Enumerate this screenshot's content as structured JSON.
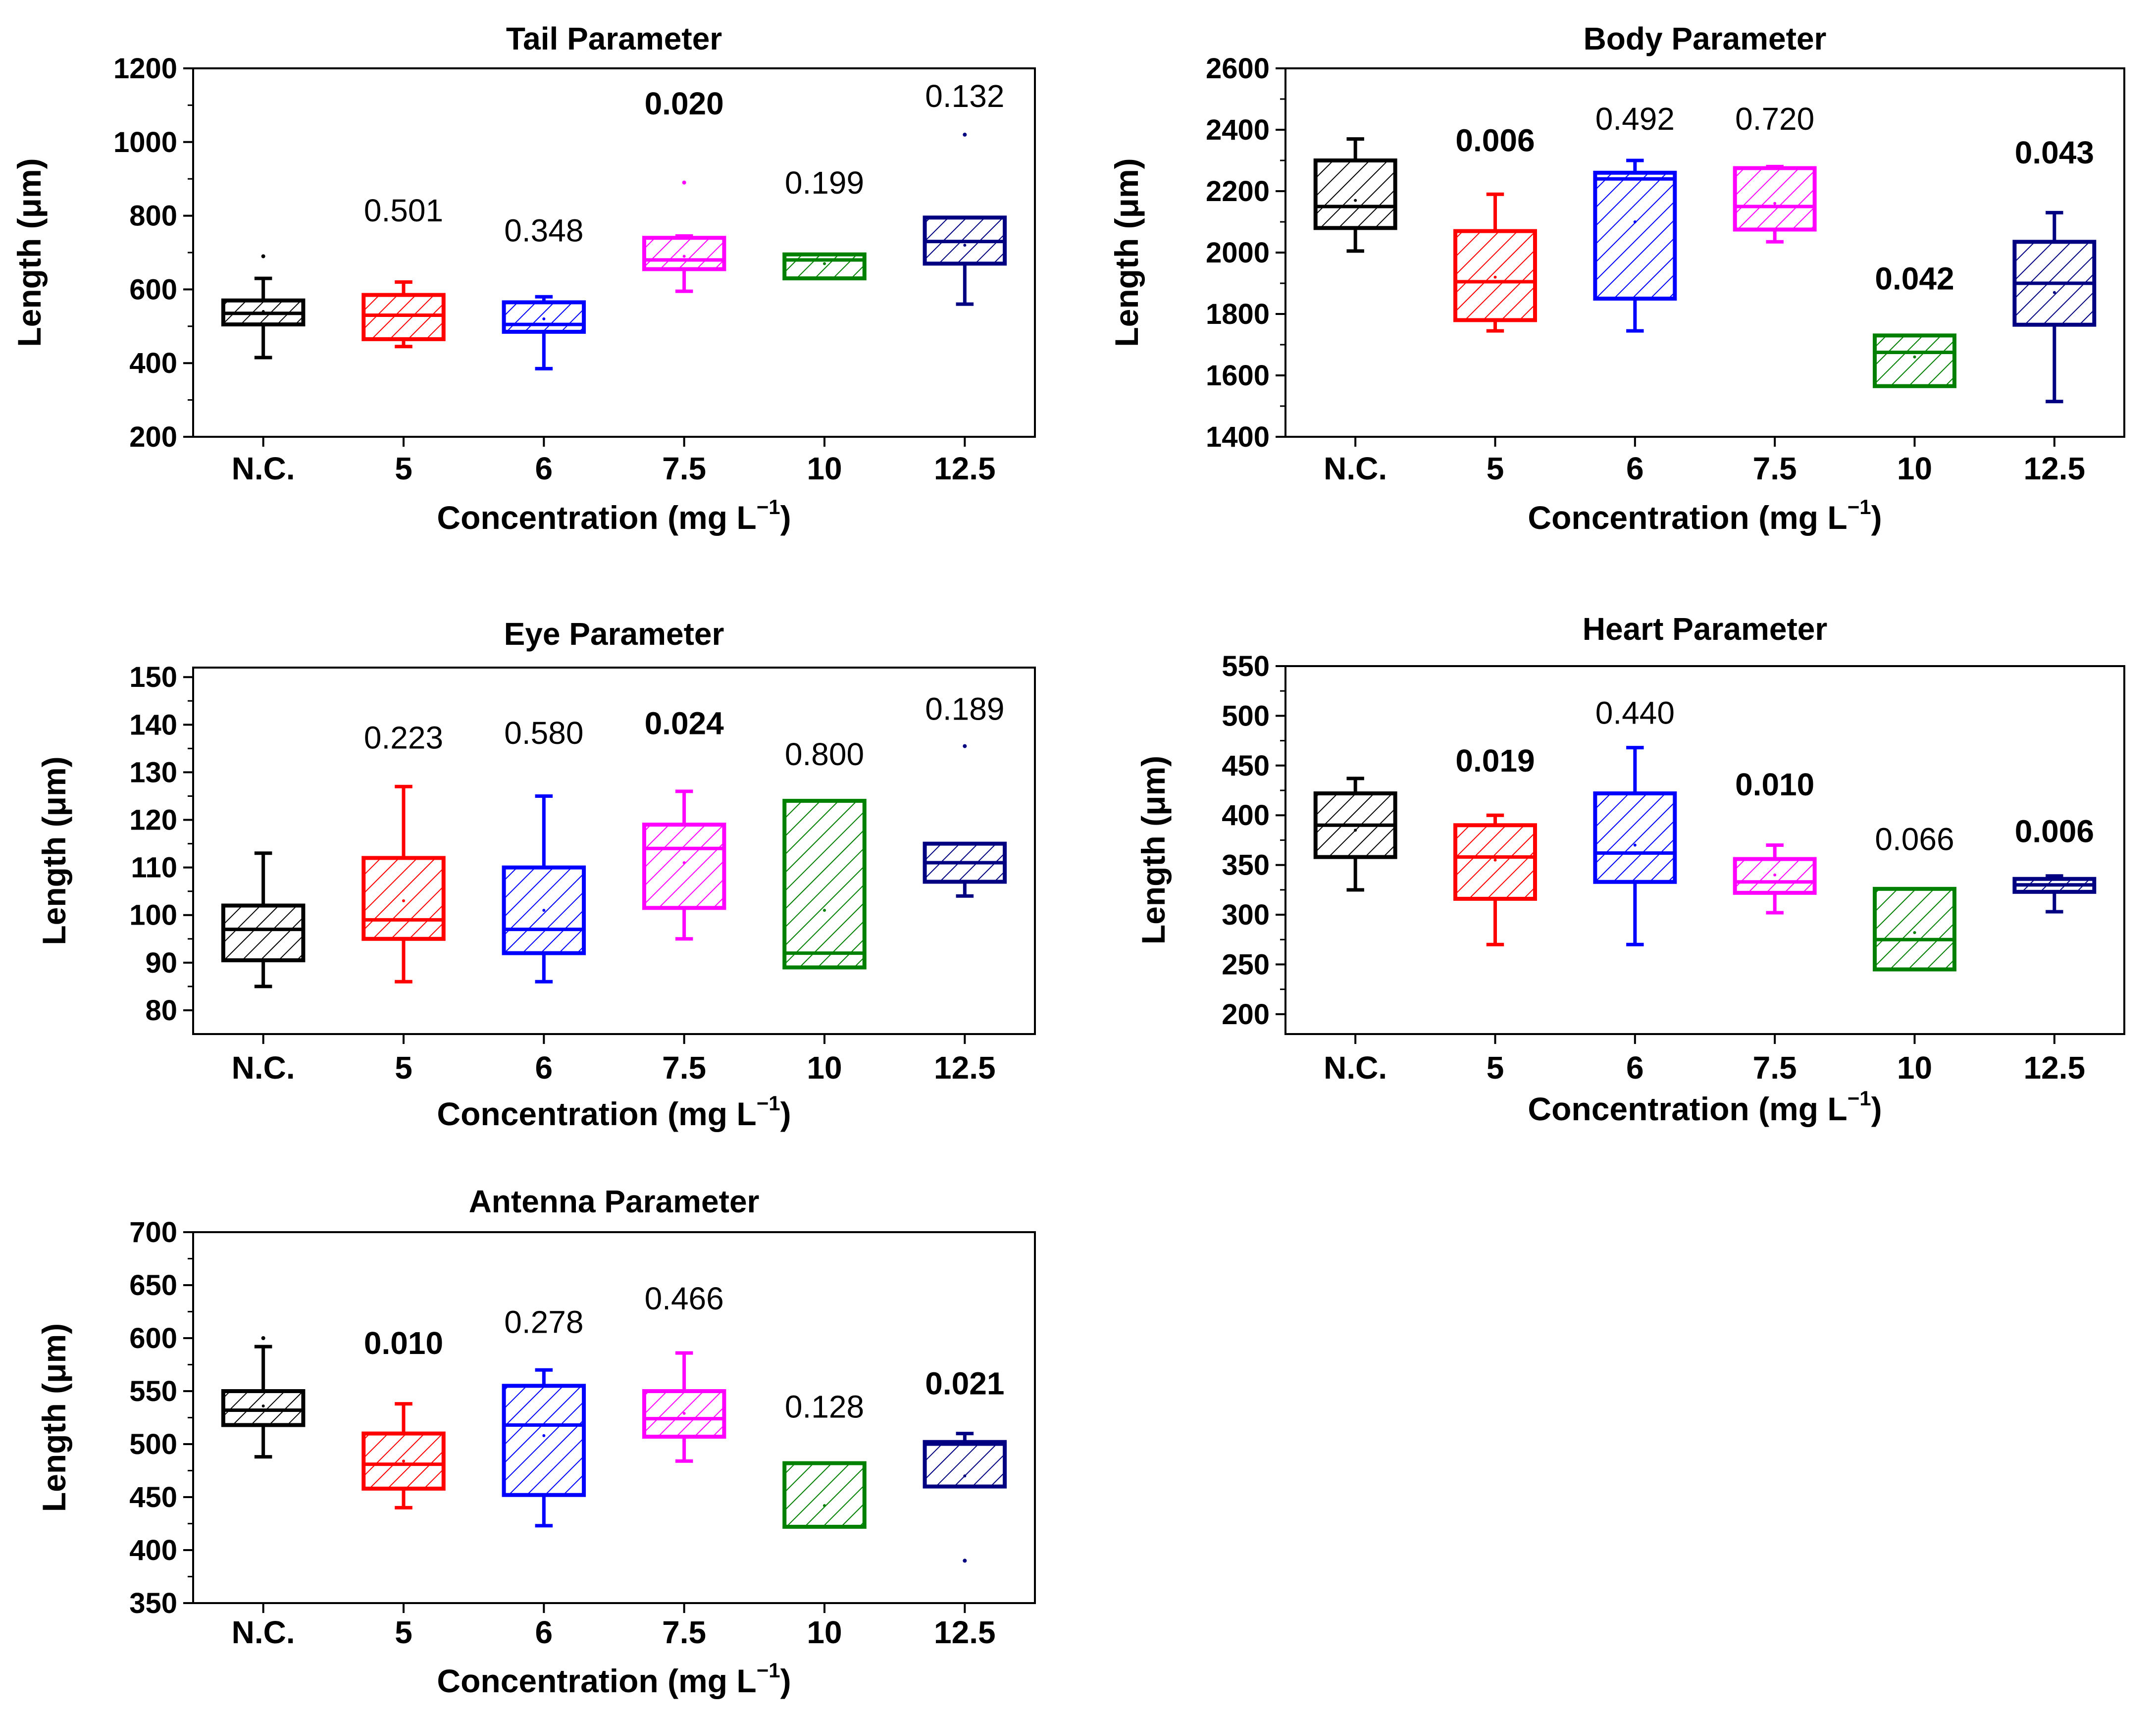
{
  "chart_data": [
    {
      "type": "box",
      "title": "Tail Parameter",
      "xlabel": "Concentration (mg L",
      "xlabel_sup": "−1",
      "xlabel_end": ")",
      "ylabel": "Length (μm)",
      "ylim": [
        200,
        1200
      ],
      "yticks": [
        200,
        400,
        600,
        800,
        1000,
        1200
      ],
      "categories": [
        "N.C.",
        "5",
        "6",
        "7.5",
        "10",
        "12.5"
      ],
      "colors": [
        "#000000",
        "#ff0000",
        "#0000ff",
        "#ff00ff",
        "#008000",
        "#000080"
      ],
      "boxes": [
        {
          "whisker_low": 415,
          "q1": 505,
          "median": 535,
          "q3": 570,
          "whisker_high": 630,
          "mean": 540,
          "outliers": [
            690
          ]
        },
        {
          "whisker_low": 445,
          "q1": 465,
          "median": 530,
          "q3": 585,
          "whisker_high": 620,
          "mean": 530,
          "outliers": []
        },
        {
          "whisker_low": 385,
          "q1": 485,
          "median": 505,
          "q3": 565,
          "whisker_high": 580,
          "mean": 520,
          "outliers": []
        },
        {
          "whisker_low": 595,
          "q1": 655,
          "median": 680,
          "q3": 740,
          "whisker_high": 745,
          "mean": 690,
          "outliers": [
            890
          ]
        },
        {
          "whisker_low": 630,
          "q1": 630,
          "median": 680,
          "q3": 695,
          "whisker_high": 695,
          "mean": 670,
          "outliers": []
        },
        {
          "whisker_low": 560,
          "q1": 670,
          "median": 730,
          "q3": 795,
          "whisker_high": 795,
          "mean": 720,
          "outliers": [
            1020
          ]
        }
      ],
      "pvalues": [
        {
          "label": "",
          "bold": false,
          "y": 0
        },
        {
          "label": "0.501",
          "bold": false,
          "y": 785
        },
        {
          "label": "0.348",
          "bold": false,
          "y": 730
        },
        {
          "label": "0.020",
          "bold": true,
          "y": 1075
        },
        {
          "label": "0.199",
          "bold": false,
          "y": 860
        },
        {
          "label": "0.132",
          "bold": false,
          "y": 1095
        }
      ]
    },
    {
      "type": "box",
      "title": "Body Parameter",
      "xlabel": "Concentration (mg L",
      "xlabel_sup": "−1",
      "xlabel_end": ")",
      "ylabel": "Length (μm)",
      "ylim": [
        1400,
        2600
      ],
      "yticks": [
        1400,
        1600,
        1800,
        2000,
        2200,
        2400,
        2600
      ],
      "categories": [
        "N.C.",
        "5",
        "6",
        "7.5",
        "10",
        "12.5"
      ],
      "colors": [
        "#000000",
        "#ff0000",
        "#0000ff",
        "#ff00ff",
        "#008000",
        "#000080"
      ],
      "boxes": [
        {
          "whisker_low": 2005,
          "q1": 2080,
          "median": 2150,
          "q3": 2300,
          "whisker_high": 2370,
          "mean": 2170,
          "outliers": []
        },
        {
          "whisker_low": 1745,
          "q1": 1780,
          "median": 1905,
          "q3": 2070,
          "whisker_high": 2190,
          "mean": 1920,
          "outliers": []
        },
        {
          "whisker_low": 1745,
          "q1": 1850,
          "median": 2240,
          "q3": 2260,
          "whisker_high": 2300,
          "mean": 2100,
          "outliers": []
        },
        {
          "whisker_low": 2035,
          "q1": 2075,
          "median": 2150,
          "q3": 2275,
          "whisker_high": 2280,
          "mean": 2160,
          "outliers": []
        },
        {
          "whisker_low": 1565,
          "q1": 1565,
          "median": 1675,
          "q3": 1730,
          "whisker_high": 1730,
          "mean": 1660,
          "outliers": []
        },
        {
          "whisker_low": 1515,
          "q1": 1765,
          "median": 1900,
          "q3": 2035,
          "whisker_high": 2130,
          "mean": 1870,
          "outliers": []
        }
      ],
      "pvalues": [
        {
          "label": "",
          "bold": false,
          "y": 0
        },
        {
          "label": "0.006",
          "bold": true,
          "y": 2330
        },
        {
          "label": "0.492",
          "bold": false,
          "y": 2400
        },
        {
          "label": "0.720",
          "bold": false,
          "y": 2400
        },
        {
          "label": "0.042",
          "bold": true,
          "y": 1880
        },
        {
          "label": "0.043",
          "bold": true,
          "y": 2290
        }
      ]
    },
    {
      "type": "box",
      "title": "Eye Parameter",
      "xlabel": "Concentration (mg L",
      "xlabel_sup": "−1",
      "xlabel_end": ")",
      "ylabel": "Length (μm)",
      "ylim": [
        75,
        152
      ],
      "yticks": [
        80,
        90,
        100,
        110,
        120,
        130,
        140,
        150
      ],
      "categories": [
        "N.C.",
        "5",
        "6",
        "7.5",
        "10",
        "12.5"
      ],
      "colors": [
        "#000000",
        "#ff0000",
        "#0000ff",
        "#ff00ff",
        "#008000",
        "#000080"
      ],
      "boxes": [
        {
          "whisker_low": 85,
          "q1": 90.5,
          "median": 97,
          "q3": 102,
          "whisker_high": 113,
          "mean": 97,
          "outliers": []
        },
        {
          "whisker_low": 86,
          "q1": 95,
          "median": 99,
          "q3": 112,
          "whisker_high": 127,
          "mean": 103,
          "outliers": []
        },
        {
          "whisker_low": 86,
          "q1": 92,
          "median": 97,
          "q3": 110,
          "whisker_high": 125,
          "mean": 101,
          "outliers": []
        },
        {
          "whisker_low": 95,
          "q1": 101.5,
          "median": 114,
          "q3": 119,
          "whisker_high": 126,
          "mean": 111,
          "outliers": []
        },
        {
          "whisker_low": 89,
          "q1": 89,
          "median": 92,
          "q3": 124,
          "whisker_high": 124,
          "mean": 101,
          "outliers": []
        },
        {
          "whisker_low": 104,
          "q1": 107,
          "median": 111,
          "q3": 115,
          "whisker_high": 115,
          "mean": 111,
          "outliers": [
            135.5
          ]
        }
      ],
      "pvalues": [
        {
          "label": "",
          "bold": false,
          "y": 0
        },
        {
          "label": "0.223",
          "bold": false,
          "y": 135
        },
        {
          "label": "0.580",
          "bold": false,
          "y": 136
        },
        {
          "label": "0.024",
          "bold": true,
          "y": 138
        },
        {
          "label": "0.800",
          "bold": false,
          "y": 131.5
        },
        {
          "label": "0.189",
          "bold": false,
          "y": 141
        }
      ]
    },
    {
      "type": "box",
      "title": "Heart Parameter",
      "xlabel": "Concentration (mg L",
      "xlabel_sup": "−1",
      "xlabel_end": ")",
      "ylabel": "Length (μm)",
      "ylim": [
        180,
        550
      ],
      "yticks": [
        200,
        250,
        300,
        350,
        400,
        450,
        500,
        550
      ],
      "categories": [
        "N.C.",
        "5",
        "6",
        "7.5",
        "10",
        "12.5"
      ],
      "colors": [
        "#000000",
        "#ff0000",
        "#0000ff",
        "#ff00ff",
        "#008000",
        "#000080"
      ],
      "boxes": [
        {
          "whisker_low": 325,
          "q1": 358,
          "median": 390,
          "q3": 422,
          "whisker_high": 437,
          "mean": 385,
          "outliers": []
        },
        {
          "whisker_low": 270,
          "q1": 316,
          "median": 358,
          "q3": 390,
          "whisker_high": 400,
          "mean": 355,
          "outliers": []
        },
        {
          "whisker_low": 270,
          "q1": 333,
          "median": 362,
          "q3": 422,
          "whisker_high": 468,
          "mean": 370,
          "outliers": []
        },
        {
          "whisker_low": 302,
          "q1": 322,
          "median": 333,
          "q3": 356,
          "whisker_high": 370,
          "mean": 340,
          "outliers": []
        },
        {
          "whisker_low": 245,
          "q1": 245,
          "median": 275,
          "q3": 326,
          "whisker_high": 326,
          "mean": 282,
          "outliers": []
        },
        {
          "whisker_low": 303,
          "q1": 323,
          "median": 330,
          "q3": 336,
          "whisker_high": 339,
          "mean": 330,
          "outliers": []
        }
      ],
      "pvalues": [
        {
          "label": "",
          "bold": false,
          "y": 0
        },
        {
          "label": "0.019",
          "bold": true,
          "y": 444
        },
        {
          "label": "0.440",
          "bold": false,
          "y": 492
        },
        {
          "label": "0.010",
          "bold": true,
          "y": 420
        },
        {
          "label": "0.066",
          "bold": false,
          "y": 365
        },
        {
          "label": "0.006",
          "bold": true,
          "y": 373
        }
      ]
    },
    {
      "type": "box",
      "title": "Antenna Parameter",
      "xlabel": "Concentration (mg L",
      "xlabel_sup": "−1",
      "xlabel_end": ")",
      "ylabel": "Length (μm)",
      "ylim": [
        350,
        700
      ],
      "yticks": [
        350,
        400,
        450,
        500,
        550,
        600,
        650,
        700
      ],
      "categories": [
        "N.C.",
        "5",
        "6",
        "7.5",
        "10",
        "12.5"
      ],
      "colors": [
        "#000000",
        "#ff0000",
        "#0000ff",
        "#ff00ff",
        "#008000",
        "#000080"
      ],
      "boxes": [
        {
          "whisker_low": 488,
          "q1": 518,
          "median": 532,
          "q3": 550,
          "whisker_high": 592,
          "mean": 536,
          "outliers": [
            600
          ]
        },
        {
          "whisker_low": 440,
          "q1": 458,
          "median": 481,
          "q3": 510,
          "whisker_high": 538,
          "mean": 484,
          "outliers": []
        },
        {
          "whisker_low": 423,
          "q1": 452,
          "median": 518,
          "q3": 555,
          "whisker_high": 570,
          "mean": 508,
          "outliers": []
        },
        {
          "whisker_low": 484,
          "q1": 507,
          "median": 524,
          "q3": 550,
          "whisker_high": 586,
          "mean": 529,
          "outliers": []
        },
        {
          "whisker_low": 422,
          "q1": 422,
          "median": 482,
          "q3": 482,
          "whisker_high": 482,
          "mean": 442,
          "outliers": []
        },
        {
          "whisker_low": 460,
          "q1": 460,
          "median": 500,
          "q3": 502,
          "whisker_high": 510,
          "mean": 470,
          "outliers": [
            390
          ]
        }
      ],
      "pvalues": [
        {
          "label": "",
          "bold": false,
          "y": 0
        },
        {
          "label": "0.010",
          "bold": true,
          "y": 585
        },
        {
          "label": "0.278",
          "bold": false,
          "y": 605
        },
        {
          "label": "0.466",
          "bold": false,
          "y": 627
        },
        {
          "label": "0.128",
          "bold": false,
          "y": 525
        },
        {
          "label": "0.021",
          "bold": true,
          "y": 547
        }
      ]
    }
  ]
}
